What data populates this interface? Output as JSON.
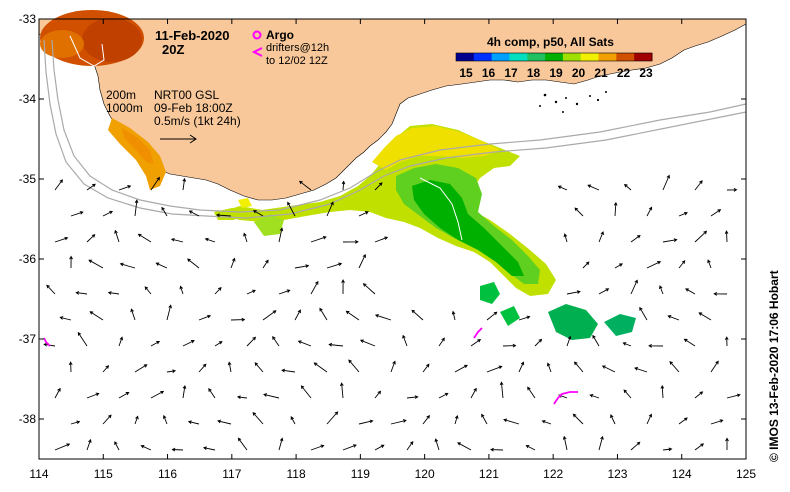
{
  "map": {
    "date_line1": "11-Feb-2020",
    "date_line2": "20Z",
    "legend_argo": "Argo",
    "legend_drifters_1": "drifters@12h",
    "legend_drifters_2": "to 12/02 12Z",
    "isobath_200": "200m",
    "isobath_1000": "1000m",
    "currents_line1": "NRT00 GSL",
    "currents_line2": "09-Feb 18:00Z",
    "currents_scale": "0.5m/s (1kt 24h)",
    "colorbar_title": "4h comp, p50, All Sats",
    "colorbar_ticks": [
      "15",
      "16",
      "17",
      "18",
      "19",
      "20",
      "21",
      "22",
      "23"
    ],
    "credit": "© IMOS 13-Feb-2020 17:06 Hobart",
    "lon_ticks": [
      "114",
      "115",
      "116",
      "117",
      "118",
      "119",
      "120",
      "121",
      "122",
      "123",
      "124",
      "125"
    ],
    "lat_ticks": [
      "-33",
      "-34",
      "-35",
      "-36",
      "-37",
      "-38"
    ],
    "lon_range": [
      114,
      125
    ],
    "lat_range": [
      -38.5,
      -33
    ],
    "colors": {
      "land": "#f9c89a",
      "argo": "#ff00ff",
      "drifter": "#ff00ff",
      "isobath": "#aaaaaa",
      "sst_scale": [
        "#00008f",
        "#0030ff",
        "#00a0ff",
        "#00e0c0",
        "#20c060",
        "#00b000",
        "#a0e000",
        "#f0f000",
        "#f0a000",
        "#d05000",
        "#a00000"
      ]
    }
  }
}
